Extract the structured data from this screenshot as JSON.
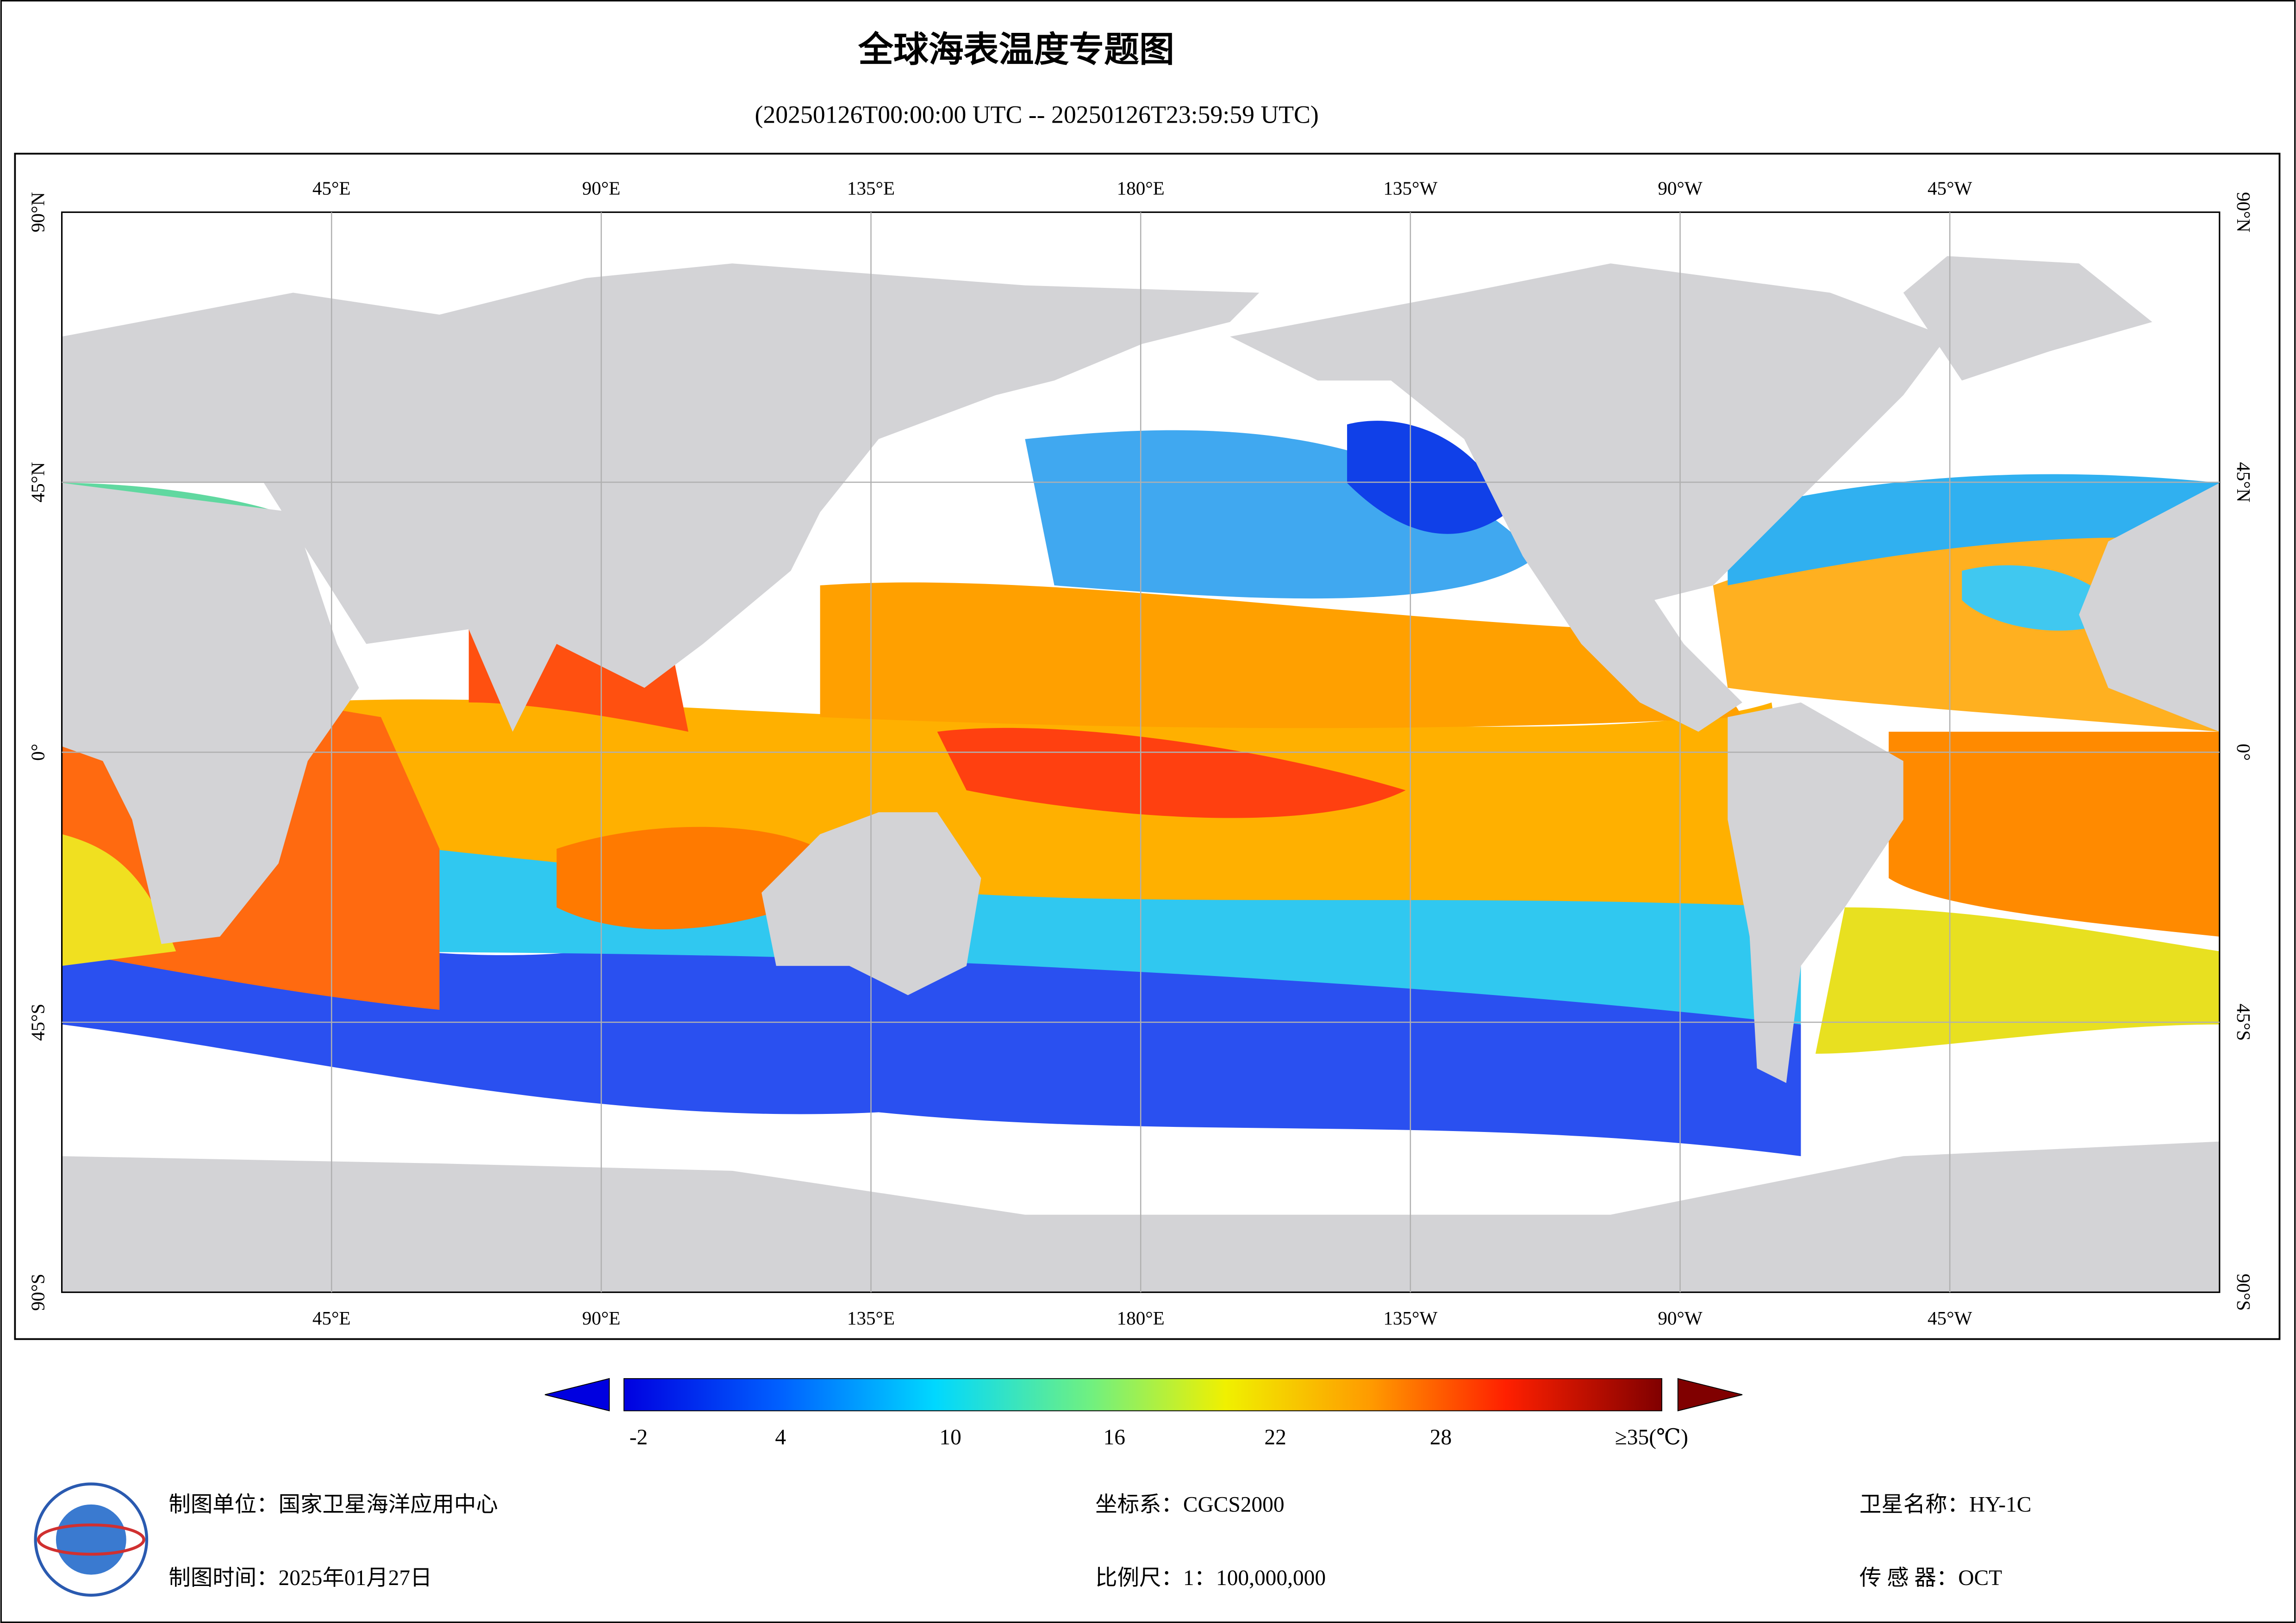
{
  "title": "全球海表温度专题图",
  "subtitle": "(20250126T00:00:00 UTC -- 20250126T23:59:59 UTC)",
  "map": {
    "lon_labels": [
      "45°E",
      "90°E",
      "135°E",
      "180°E",
      "135°W",
      "90°W",
      "45°W"
    ],
    "lat_labels": [
      "90°N",
      "45°N",
      "0°",
      "45°S",
      "90°S"
    ]
  },
  "colorbar": {
    "ticks": [
      "-2",
      "4",
      "10",
      "16",
      "22",
      "28",
      "≥35(℃)"
    ]
  },
  "footer": {
    "unit": "制图单位：国家卫星海洋应用中心",
    "time": "制图时间：2025年01月27日",
    "crs": "坐标系：CGCS2000",
    "scale": "比例尺：1：100,000,000",
    "satellite": "卫星名称：HY-1C",
    "sensor": "传 感 器：OCT"
  }
}
